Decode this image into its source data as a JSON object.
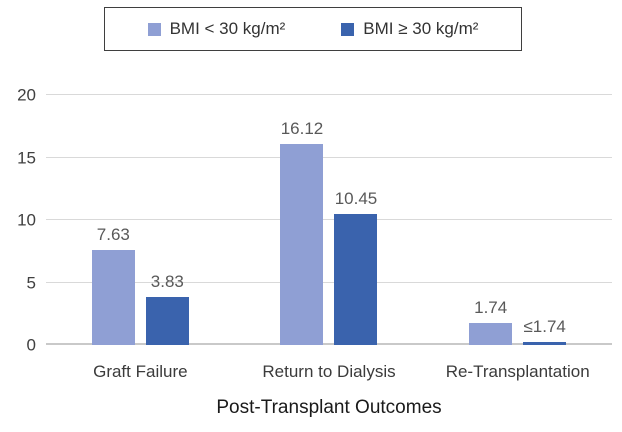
{
  "chart_data": {
    "type": "bar",
    "categories": [
      "Graft Failure",
      "Return to Dialysis",
      "Re-Transplantation"
    ],
    "series": [
      {
        "name": "BMI < 30 kg/m²",
        "color": "#8f9fd4",
        "values": [
          7.63,
          16.12,
          1.74
        ],
        "labels": [
          "7.63",
          "16.12",
          "1.74"
        ]
      },
      {
        "name": "BMI ≥ 30 kg/m²",
        "color": "#3a63ad",
        "values": [
          3.83,
          10.45,
          0.25
        ],
        "labels": [
          "3.83",
          "10.45",
          "≤1.74"
        ]
      }
    ],
    "title": "",
    "xlabel": "Post-Transplant Outcomes",
    "ylabel": "",
    "ylim": [
      0,
      20
    ],
    "yticks": [
      0,
      5,
      10,
      15,
      20
    ],
    "grid": true,
    "legend_position": "top",
    "colors": {
      "gridline": "#d9d9d9",
      "axis_line": "#c9c9c9",
      "value_label": "#595959",
      "tick_label": "#404040",
      "legend_border": "#3f3f3f"
    }
  }
}
